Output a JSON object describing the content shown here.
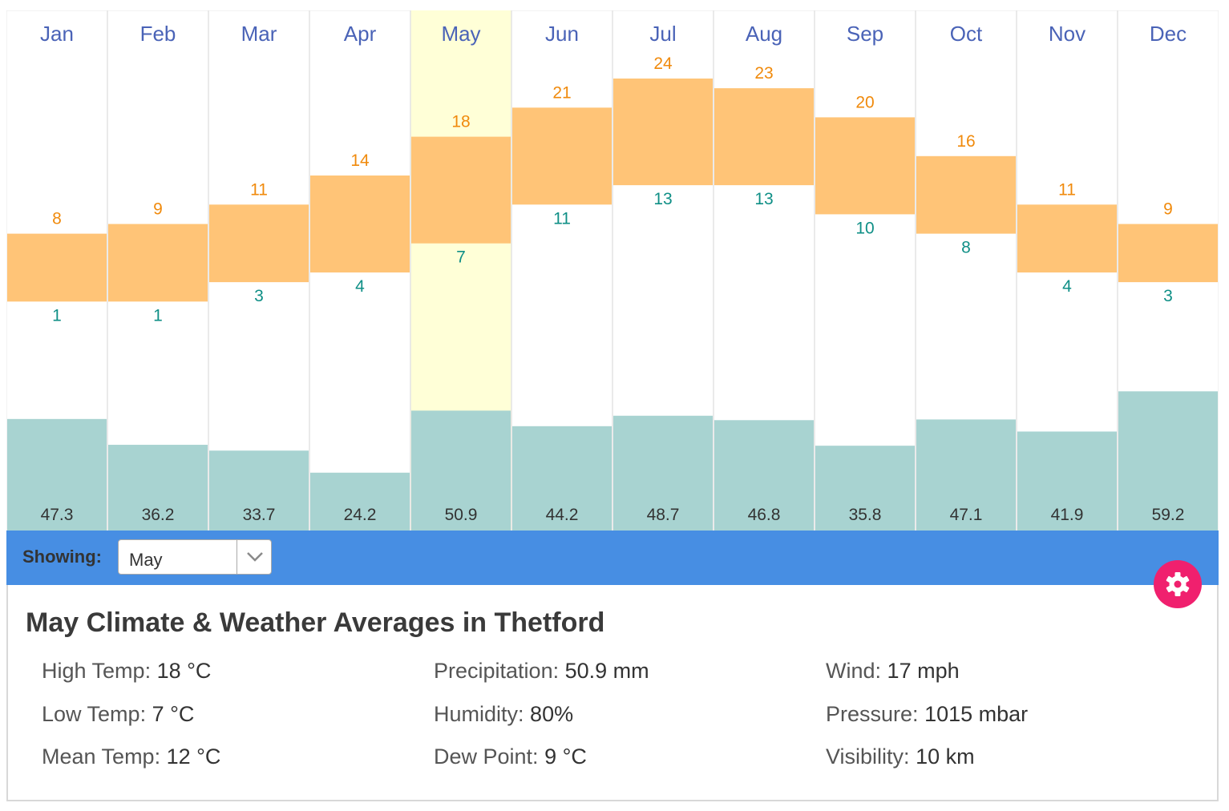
{
  "chart_data": {
    "type": "bar",
    "categories": [
      "Jan",
      "Feb",
      "Mar",
      "Apr",
      "May",
      "Jun",
      "Jul",
      "Aug",
      "Sep",
      "Oct",
      "Nov",
      "Dec"
    ],
    "series": [
      {
        "values": [
          8,
          9,
          11,
          14,
          18,
          21,
          24,
          23,
          20,
          16,
          11,
          9
        ]
      },
      {
        "values": [
          1,
          1,
          3,
          4,
          7,
          11,
          13,
          13,
          10,
          8,
          4,
          3
        ]
      },
      {
        "values": [
          47.3,
          36.2,
          33.7,
          24.2,
          50.9,
          44.2,
          48.7,
          46.8,
          35.8,
          47.1,
          41.9,
          59.2
        ]
      }
    ],
    "selected_month": "May",
    "colors": {
      "temp_band": "#ffc477",
      "high_label": "#f08a0c",
      "low_label": "#0f8f86",
      "precip_bar": "#a8d3d1",
      "precip_label": "#333333",
      "month_label": "#4a63b7",
      "highlight": "#ffffd7",
      "column_divider": "#e3e3e3"
    }
  },
  "controls": {
    "showing_label": "Showing:",
    "selected_month": "May",
    "accent_color": "#478ee3"
  },
  "settings": {
    "icon": "gear-icon",
    "color": "#f0206e"
  },
  "details": {
    "title": "May Climate & Weather Averages in Thetford",
    "stats": [
      {
        "label": "High Temp:",
        "value": "18 °C"
      },
      {
        "label": "Low Temp:",
        "value": "7 °C"
      },
      {
        "label": "Mean Temp:",
        "value": "12 °C"
      },
      {
        "label": "Precipitation:",
        "value": "50.9 mm"
      },
      {
        "label": "Humidity:",
        "value": "80%"
      },
      {
        "label": "Dew Point:",
        "value": "9 °C"
      },
      {
        "label": "Wind:",
        "value": "17 mph"
      },
      {
        "label": "Pressure:",
        "value": "1015 mbar"
      },
      {
        "label": "Visibility:",
        "value": "10 km"
      }
    ]
  }
}
